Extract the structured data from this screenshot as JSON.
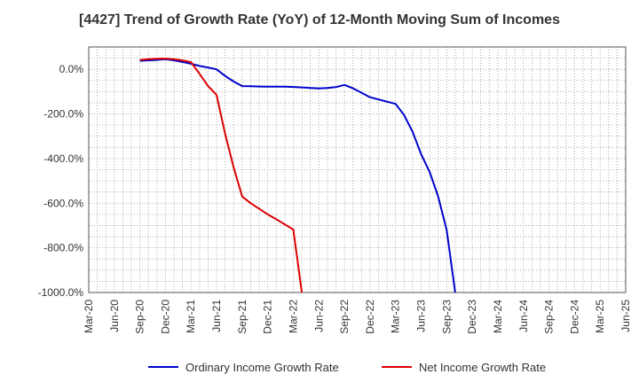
{
  "chart_data": {
    "type": "line",
    "title": "[4427]  Trend of Growth Rate (YoY) of 12-Month Moving Sum of Incomes",
    "xlabel": "",
    "ylabel": "",
    "ylim": [
      -1000,
      100
    ],
    "yticks": [
      0,
      -200,
      -400,
      -600,
      -800,
      -1000
    ],
    "ytick_labels": [
      "0.0%",
      "-200.0%",
      "-400.0%",
      "-600.0%",
      "-800.0%",
      "-1000.0%"
    ],
    "x_categories": [
      "Mar-20",
      "Jun-20",
      "Sep-20",
      "Dec-20",
      "Mar-21",
      "Jun-21",
      "Sep-21",
      "Dec-21",
      "Mar-22",
      "Jun-22",
      "Sep-22",
      "Dec-22",
      "Mar-23",
      "Jun-23",
      "Sep-23",
      "Dec-23",
      "Mar-24",
      "Jun-24",
      "Sep-24",
      "Dec-24",
      "Mar-25",
      "Jun-25"
    ],
    "grid": true,
    "legend_position": "bottom",
    "series": [
      {
        "name": "Ordinary Income Growth Rate",
        "color": "#0000cc",
        "points": [
          [
            "2020-09",
            38
          ],
          [
            "2020-10",
            40
          ],
          [
            "2020-11",
            42
          ],
          [
            "2020-12",
            45
          ],
          [
            "2021-01",
            40
          ],
          [
            "2021-02",
            33
          ],
          [
            "2021-03",
            25
          ],
          [
            "2021-04",
            15
          ],
          [
            "2021-05",
            8
          ],
          [
            "2021-06",
            0
          ],
          [
            "2021-07",
            -30
          ],
          [
            "2021-08",
            -55
          ],
          [
            "2021-09",
            -75
          ],
          [
            "2021-10",
            -76
          ],
          [
            "2021-11",
            -77
          ],
          [
            "2021-12",
            -78
          ],
          [
            "2022-01",
            -78
          ],
          [
            "2022-02",
            -78
          ],
          [
            "2022-03",
            -79
          ],
          [
            "2022-04",
            -81
          ],
          [
            "2022-05",
            -84
          ],
          [
            "2022-06",
            -86
          ],
          [
            "2022-07",
            -84
          ],
          [
            "2022-08",
            -80
          ],
          [
            "2022-09",
            -70
          ],
          [
            "2022-10",
            -85
          ],
          [
            "2022-11",
            -105
          ],
          [
            "2022-12",
            -125
          ],
          [
            "2023-01",
            -135
          ],
          [
            "2023-02",
            -145
          ],
          [
            "2023-03",
            -155
          ],
          [
            "2023-04",
            -205
          ],
          [
            "2023-05",
            -280
          ],
          [
            "2023-06",
            -380
          ],
          [
            "2023-07",
            -460
          ],
          [
            "2023-08",
            -570
          ],
          [
            "2023-09",
            -720
          ],
          [
            "2023-10",
            -1000
          ]
        ]
      },
      {
        "name": "Net Income Growth Rate",
        "color": "#dd0000",
        "points": [
          [
            "2020-09",
            42
          ],
          [
            "2020-10",
            45
          ],
          [
            "2020-11",
            47
          ],
          [
            "2020-12",
            48
          ],
          [
            "2021-01",
            45
          ],
          [
            "2021-02",
            40
          ],
          [
            "2021-03",
            32
          ],
          [
            "2021-04",
            -20
          ],
          [
            "2021-05",
            -75
          ],
          [
            "2021-06",
            -115
          ],
          [
            "2021-07",
            -290
          ],
          [
            "2021-08",
            -440
          ],
          [
            "2021-09",
            -570
          ],
          [
            "2021-10",
            -600
          ],
          [
            "2021-11",
            -625
          ],
          [
            "2021-12",
            -650
          ],
          [
            "2022-01",
            -672
          ],
          [
            "2022-02",
            -695
          ],
          [
            "2022-03",
            -718
          ],
          [
            "2022-04",
            -1000
          ]
        ]
      }
    ]
  }
}
